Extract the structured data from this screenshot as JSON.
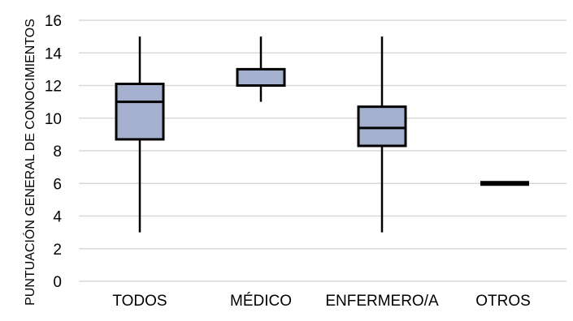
{
  "chart_data": {
    "type": "boxplot",
    "ylabel": "PUNTUACIÓN GENERAL DE CONOCIMIENTOS",
    "ylim": [
      0,
      16
    ],
    "yticks": [
      0,
      2,
      4,
      6,
      8,
      10,
      12,
      14,
      16
    ],
    "grid": true,
    "categories": [
      "TODOS",
      "MÉDICO",
      "ENFERMERO/A",
      "OTROS"
    ],
    "boxes": [
      {
        "category": "TODOS",
        "min": 3,
        "q1": 8.7,
        "median": 11,
        "q3": 12.1,
        "max": 15
      },
      {
        "category": "MÉDICO",
        "min": 11,
        "q1": 12,
        "median": 12,
        "q3": 13,
        "max": 15
      },
      {
        "category": "ENFERMERO/A",
        "min": 3,
        "q1": 8.3,
        "median": 9.4,
        "q3": 10.7,
        "max": 15
      },
      {
        "category": "OTROS",
        "min": 6,
        "q1": 6,
        "median": 6,
        "q3": 6,
        "max": 6
      }
    ],
    "colors": {
      "box_fill": "#A5B0CF",
      "box_stroke": "#000000",
      "grid": "#D9D9D9"
    }
  }
}
